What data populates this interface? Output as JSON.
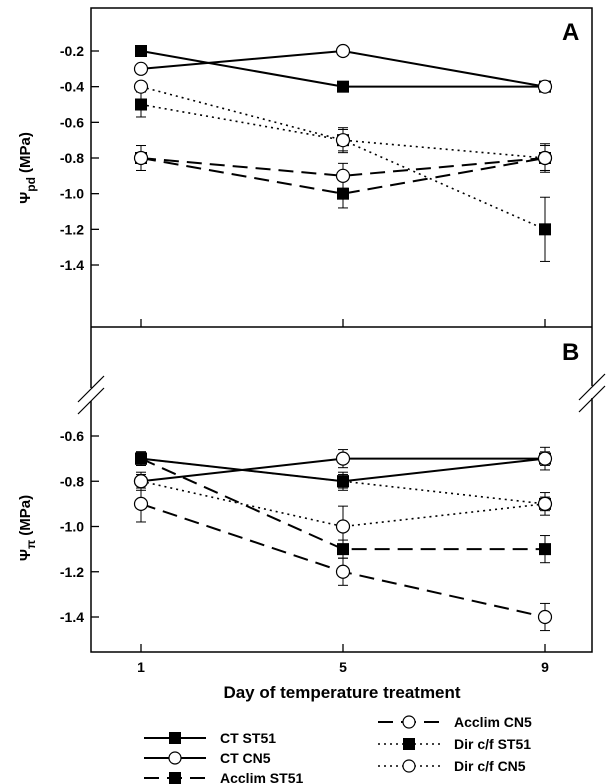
{
  "chart_data": [
    {
      "type": "line",
      "panel": "A",
      "ylabel_main": "Ψ",
      "ylabel_sub": "pd",
      "ylabel_unit": "(MPa)",
      "ylim": [
        -1.5,
        0
      ],
      "yticks": [
        -0.2,
        -0.4,
        -0.6,
        -0.8,
        -1.0,
        -1.2,
        -1.4
      ],
      "ytick_labels": [
        "-0.2",
        "-0.4",
        "-0.6",
        "-0.8",
        "-1.0",
        "-1.2",
        "-1.4"
      ],
      "x": [
        1,
        5,
        9
      ],
      "series": [
        {
          "name": "CT ST51",
          "values": [
            -0.2,
            -0.4,
            -0.4
          ],
          "errors": [
            0.02,
            0.02,
            0.03
          ]
        },
        {
          "name": "CT CN5",
          "values": [
            -0.3,
            -0.2,
            -0.4
          ],
          "errors": [
            0.02,
            0.01,
            0.03
          ]
        },
        {
          "name": "Acclim ST51",
          "values": [
            -0.8,
            -1.0,
            -0.8
          ],
          "errors": [
            0.07,
            0.08,
            0.07
          ]
        },
        {
          "name": "Acclim CN5",
          "values": [
            -0.8,
            -0.9,
            -0.8
          ],
          "errors": [
            0.07,
            0.07,
            0.07
          ]
        },
        {
          "name": "Dir c/f ST51",
          "values": [
            -0.5,
            -0.7,
            -1.2
          ],
          "errors": [
            0.07,
            0.07,
            0.18
          ]
        },
        {
          "name": "Dir c/f CN5",
          "values": [
            -0.4,
            -0.7,
            -0.8
          ],
          "errors": [
            0.02,
            0.06,
            0.08
          ]
        }
      ]
    },
    {
      "type": "line",
      "panel": "B",
      "ylabel_main": "Ψ",
      "ylabel_sub": "π",
      "ylabel_unit": "(MPa)",
      "ylim": [
        -1.55,
        -0.55
      ],
      "yticks": [
        -0.6,
        -0.8,
        -1.0,
        -1.2,
        -1.4
      ],
      "ytick_labels": [
        "-0.6",
        "-0.8",
        "-1.0",
        "-1.2",
        "-1.4"
      ],
      "x": [
        1,
        5,
        9
      ],
      "xticks": [
        "1",
        "5",
        "9"
      ],
      "xlabel": "Day of temperature treatment",
      "series": [
        {
          "name": "CT ST51",
          "values": [
            -0.7,
            -0.8,
            -0.7
          ],
          "errors": [
            0.03,
            0.03,
            0.03
          ]
        },
        {
          "name": "CT CN5",
          "values": [
            -0.8,
            -0.7,
            -0.7
          ],
          "errors": [
            0.03,
            0.04,
            0.05
          ]
        },
        {
          "name": "Acclim ST51",
          "values": [
            -0.7,
            -1.1,
            -1.1
          ],
          "errors": [
            0.03,
            0.04,
            0.06
          ]
        },
        {
          "name": "Acclim CN5",
          "values": [
            -0.9,
            -1.2,
            -1.4
          ],
          "errors": [
            0.08,
            0.06,
            0.06
          ]
        },
        {
          "name": "Dir c/f ST51",
          "values": [
            -0.7,
            -0.8,
            -0.9
          ],
          "errors": [
            0.03,
            0.04,
            0.03
          ]
        },
        {
          "name": "Dir c/f CN5",
          "values": [
            -0.8,
            -1.0,
            -0.9
          ],
          "errors": [
            0.04,
            0.09,
            0.05
          ]
        }
      ]
    }
  ],
  "legend": [
    {
      "label": "CT ST51",
      "marker": "square",
      "dash": "solid"
    },
    {
      "label": "CT CN5",
      "marker": "circle",
      "dash": "solid"
    },
    {
      "label": "Acclim ST51",
      "marker": "square",
      "dash": "long"
    },
    {
      "label": "Acclim CN5",
      "marker": "circle",
      "dash": "long"
    },
    {
      "label": "Dir c/f ST51",
      "marker": "square",
      "dash": "dot"
    },
    {
      "label": "Dir c/f CN5",
      "marker": "circle",
      "dash": "dot"
    }
  ],
  "colors": {
    "ink": "#000000",
    "background": "#ffffff"
  }
}
